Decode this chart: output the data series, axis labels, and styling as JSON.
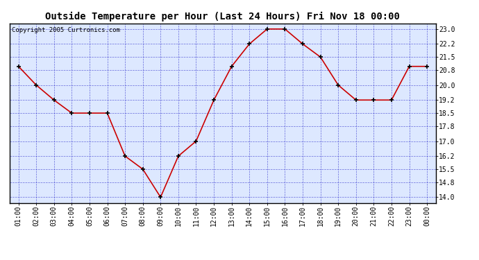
{
  "title": "Outside Temperature per Hour (Last 24 Hours) Fri Nov 18 00:00",
  "copyright": "Copyright 2005 Curtronics.com",
  "hours": [
    "01:00",
    "02:00",
    "03:00",
    "04:00",
    "05:00",
    "06:00",
    "07:00",
    "08:00",
    "09:00",
    "10:00",
    "11:00",
    "12:00",
    "13:00",
    "14:00",
    "15:00",
    "16:00",
    "17:00",
    "18:00",
    "19:00",
    "20:00",
    "21:00",
    "22:00",
    "23:00",
    "00:00"
  ],
  "temps": [
    21.0,
    20.0,
    19.2,
    18.5,
    18.5,
    18.5,
    16.2,
    15.5,
    14.0,
    16.2,
    17.0,
    19.2,
    21.0,
    22.2,
    23.0,
    23.0,
    22.2,
    21.5,
    20.0,
    19.2,
    19.2,
    19.2,
    21.0,
    21.0
  ],
  "ylim": [
    13.7,
    23.3
  ],
  "yticks": [
    14.0,
    14.8,
    15.5,
    16.2,
    17.0,
    17.8,
    18.5,
    19.2,
    20.0,
    20.8,
    21.5,
    22.2,
    23.0
  ],
  "line_color": "#cc0000",
  "marker_color": "#000000",
  "bg_color": "#dde8ff",
  "grid_color": "#3333cc",
  "title_fontsize": 10,
  "tick_fontsize": 7,
  "copyright_fontsize": 6.5
}
